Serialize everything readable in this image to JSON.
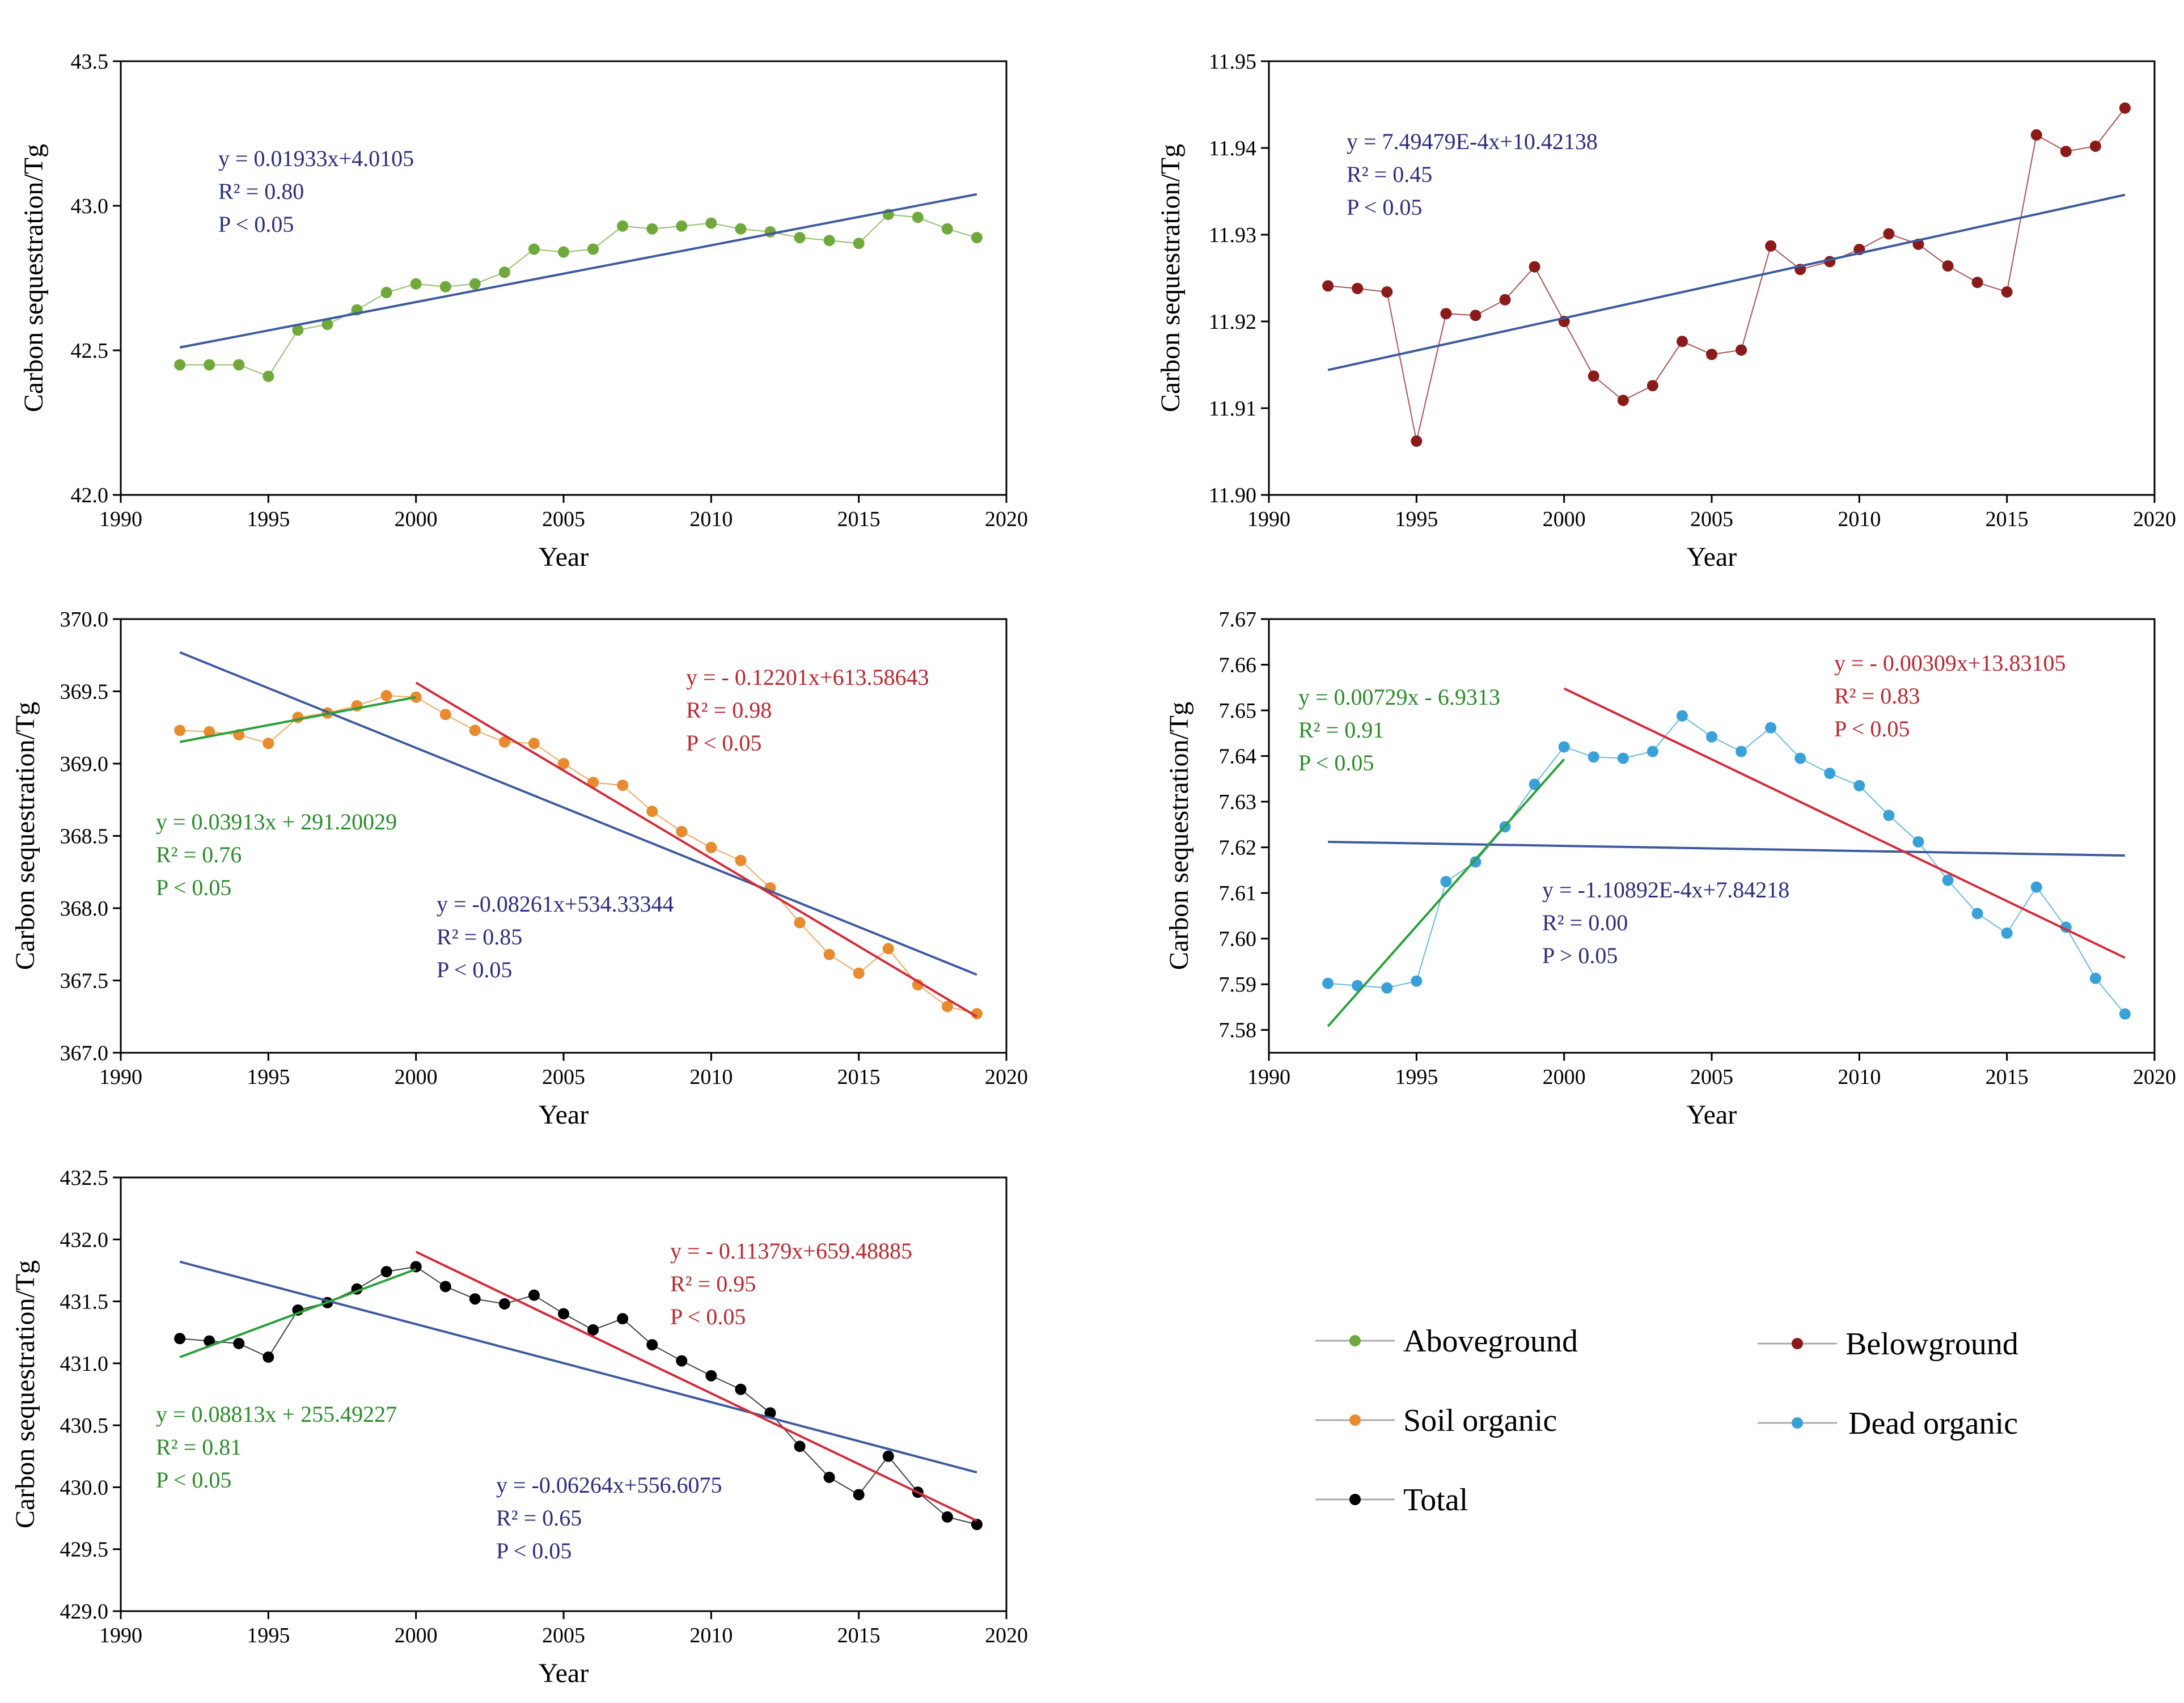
{
  "colors": {
    "aboveground": "#70a83c",
    "belowground": "#8b1a1a",
    "soil": "#e88a2e",
    "dead": "#3aa0d8",
    "total": "#000000",
    "fit_blue": "#3d5a9e",
    "fit_red": "#d42a3a",
    "fit_green": "#2aa03a",
    "ann_blue": "#2c2c7c",
    "ann_red": "#b8282e",
    "ann_green": "#2b8a2b"
  },
  "legend": {
    "aboveground": "Aboveground",
    "belowground": "Belowground",
    "soil": "Soil organic",
    "dead": "Dead organic",
    "total": "Total"
  },
  "chart_data": [
    {
      "id": "aboveground",
      "type": "line",
      "xlabel": "Year",
      "ylabel": "Carbon sequestration/Tg",
      "xlim": [
        1990,
        2020
      ],
      "ylim": [
        42.0,
        43.5
      ],
      "xticks": [
        "1990",
        "1995",
        "2000",
        "2005",
        "2010",
        "2015",
        "2020"
      ],
      "yticks": [
        "42.0",
        "42.5",
        "43.0",
        "43.5"
      ],
      "series": [
        {
          "name": "Aboveground",
          "color_key": "aboveground",
          "x": [
            1992,
            1993,
            1994,
            1995,
            1996,
            1997,
            1998,
            1999,
            2000,
            2001,
            2002,
            2003,
            2004,
            2005,
            2006,
            2007,
            2008,
            2009,
            2010,
            2011,
            2012,
            2013,
            2014,
            2015,
            2016,
            2017,
            2018,
            2019
          ],
          "y": [
            42.45,
            42.45,
            42.45,
            42.41,
            42.57,
            42.59,
            42.64,
            42.7,
            42.73,
            42.72,
            42.73,
            42.77,
            42.85,
            42.84,
            42.85,
            42.93,
            42.92,
            42.93,
            42.94,
            42.92,
            42.91,
            42.89,
            42.88,
            42.87,
            42.97,
            42.96,
            42.92,
            42.89
          ]
        }
      ],
      "fits": [
        {
          "color_key": "fit_blue",
          "x": [
            1992,
            2019
          ],
          "y": [
            42.51,
            43.04
          ]
        }
      ],
      "annotations": [
        {
          "color_key": "ann_blue",
          "lines": [
            "y = 0.01933x+4.0105",
            "R² = 0.80",
            "P < 0.05"
          ]
        }
      ]
    },
    {
      "id": "belowground",
      "type": "line",
      "xlabel": "Year",
      "ylabel": "Carbon sequestration/Tg",
      "xlim": [
        1990,
        2020
      ],
      "ylim": [
        11.9,
        11.95
      ],
      "xticks": [
        "1990",
        "1995",
        "2000",
        "2005",
        "2010",
        "2015",
        "2020"
      ],
      "yticks": [
        "11.90",
        "11.91",
        "11.92",
        "11.93",
        "11.94",
        "11.95"
      ],
      "series": [
        {
          "name": "Belowground",
          "color_key": "belowground",
          "x": [
            1992,
            1993,
            1994,
            1995,
            1996,
            1997,
            1998,
            1999,
            2000,
            2001,
            2002,
            2003,
            2004,
            2005,
            2006,
            2007,
            2008,
            2009,
            2010,
            2011,
            2012,
            2013,
            2014,
            2015,
            2016,
            2017,
            2018,
            2019
          ],
          "y": [
            11.9241,
            11.9238,
            11.9234,
            11.9062,
            11.9209,
            11.9207,
            11.9225,
            11.9263,
            11.92,
            11.9137,
            11.9109,
            11.9126,
            11.9177,
            11.9162,
            11.9167,
            11.9287,
            11.926,
            11.9269,
            11.9283,
            11.9301,
            11.9289,
            11.9264,
            11.9245,
            11.9234,
            11.9415,
            11.9396,
            11.9402,
            11.9446
          ]
        }
      ],
      "fits": [
        {
          "color_key": "fit_blue",
          "x": [
            1992,
            2019
          ],
          "y": [
            11.9144,
            11.9346
          ]
        }
      ],
      "annotations": [
        {
          "color_key": "ann_blue",
          "lines": [
            "y = 7.49479E-4x+10.42138",
            "R² = 0.45",
            "P < 0.05"
          ]
        }
      ]
    },
    {
      "id": "soil",
      "type": "line",
      "xlabel": "Year",
      "ylabel": "Carbon sequestration/Tg",
      "xlim": [
        1990,
        2020
      ],
      "ylim": [
        367.0,
        370.0
      ],
      "xticks": [
        "1990",
        "1995",
        "2000",
        "2005",
        "2010",
        "2015",
        "2020"
      ],
      "yticks": [
        "367.0",
        "367.5",
        "368.0",
        "368.5",
        "369.0",
        "369.5",
        "370.0"
      ],
      "series": [
        {
          "name": "Soil organic",
          "color_key": "soil",
          "x": [
            1992,
            1993,
            1994,
            1995,
            1996,
            1997,
            1998,
            1999,
            2000,
            2001,
            2002,
            2003,
            2004,
            2005,
            2006,
            2007,
            2008,
            2009,
            2010,
            2011,
            2012,
            2013,
            2014,
            2015,
            2016,
            2017,
            2018,
            2019
          ],
          "y": [
            369.23,
            369.22,
            369.2,
            369.14,
            369.32,
            369.35,
            369.4,
            369.47,
            369.46,
            369.34,
            369.23,
            369.15,
            369.14,
            369.0,
            368.87,
            368.85,
            368.67,
            368.53,
            368.42,
            368.33,
            368.14,
            367.9,
            367.68,
            367.55,
            367.72,
            367.47,
            367.32,
            367.27
          ]
        }
      ],
      "fits": [
        {
          "color_key": "fit_blue",
          "x": [
            1992,
            2019
          ],
          "y": [
            369.77,
            367.54
          ]
        },
        {
          "color_key": "fit_red",
          "x": [
            2000,
            2019
          ],
          "y": [
            369.56,
            367.25
          ]
        },
        {
          "color_key": "fit_green",
          "x": [
            1992,
            2000
          ],
          "y": [
            369.15,
            369.46
          ]
        }
      ],
      "annotations": [
        {
          "color_key": "ann_red",
          "lines": [
            "y = - 0.12201x+613.58643",
            "R² = 0.98",
            "P < 0.05"
          ]
        },
        {
          "color_key": "ann_green",
          "lines": [
            "y = 0.03913x + 291.20029",
            "R² = 0.76",
            "P < 0.05"
          ]
        },
        {
          "color_key": "ann_blue",
          "lines": [
            "y = -0.08261x+534.33344",
            "R² = 0.85",
            "P < 0.05"
          ]
        }
      ]
    },
    {
      "id": "dead",
      "type": "line",
      "xlabel": "Year",
      "ylabel": "Carbon sequestration/Tg",
      "xlim": [
        1990,
        2020
      ],
      "ylim": [
        7.575,
        7.67
      ],
      "xticks": [
        "1990",
        "1995",
        "2000",
        "2005",
        "2010",
        "2015",
        "2020"
      ],
      "yticks": [
        "7.58",
        "7.59",
        "7.60",
        "7.61",
        "7.62",
        "7.63",
        "7.64",
        "7.65",
        "7.66",
        "7.67"
      ],
      "series": [
        {
          "name": "Dead organic",
          "color_key": "dead",
          "x": [
            1992,
            1993,
            1994,
            1995,
            1996,
            1997,
            1998,
            1999,
            2000,
            2001,
            2002,
            2003,
            2004,
            2005,
            2006,
            2007,
            2008,
            2009,
            2010,
            2011,
            2012,
            2013,
            2014,
            2015,
            2016,
            2017,
            2018,
            2019
          ],
          "y": [
            7.5902,
            7.5897,
            7.5892,
            7.5907,
            7.6125,
            7.6168,
            7.6245,
            7.6338,
            7.642,
            7.6398,
            7.6395,
            7.641,
            7.6488,
            7.6442,
            7.641,
            7.6462,
            7.6395,
            7.6362,
            7.6335,
            7.627,
            7.6212,
            7.6128,
            7.6055,
            7.6012,
            7.6113,
            7.6025,
            7.5913,
            7.5835
          ]
        }
      ],
      "fits": [
        {
          "color_key": "fit_blue",
          "x": [
            1992,
            2019
          ],
          "y": [
            7.6212,
            7.6182
          ]
        },
        {
          "color_key": "fit_red",
          "x": [
            2000,
            2019
          ],
          "y": [
            7.6548,
            7.5958
          ]
        },
        {
          "color_key": "fit_green",
          "x": [
            1992,
            2000
          ],
          "y": [
            7.5808,
            7.6393
          ]
        }
      ],
      "annotations": [
        {
          "color_key": "ann_red",
          "lines": [
            "y = - 0.00309x+13.83105",
            "R² = 0.83",
            "P < 0.05"
          ]
        },
        {
          "color_key": "ann_green",
          "lines": [
            "y = 0.00729x - 6.9313",
            "R² = 0.91",
            "P < 0.05"
          ]
        },
        {
          "color_key": "ann_blue",
          "lines": [
            "y = -1.10892E-4x+7.84218",
            "R² = 0.00",
            "P > 0.05"
          ]
        }
      ]
    },
    {
      "id": "total",
      "type": "line",
      "xlabel": "Year",
      "ylabel": "Carbon sequestration/Tg",
      "xlim": [
        1990,
        2020
      ],
      "ylim": [
        429.0,
        432.5
      ],
      "xticks": [
        "1990",
        "1995",
        "2000",
        "2005",
        "2010",
        "2015",
        "2020"
      ],
      "yticks": [
        "429.0",
        "429.5",
        "430.0",
        "430.5",
        "431.0",
        "431.5",
        "432.0",
        "432.5"
      ],
      "series": [
        {
          "name": "Total",
          "color_key": "total",
          "x": [
            1992,
            1993,
            1994,
            1995,
            1996,
            1997,
            1998,
            1999,
            2000,
            2001,
            2002,
            2003,
            2004,
            2005,
            2006,
            2007,
            2008,
            2009,
            2010,
            2011,
            2012,
            2013,
            2014,
            2015,
            2016,
            2017,
            2018,
            2019
          ],
          "y": [
            431.2,
            431.18,
            431.16,
            431.05,
            431.43,
            431.49,
            431.6,
            431.74,
            431.78,
            431.62,
            431.52,
            431.48,
            431.55,
            431.4,
            431.27,
            431.36,
            431.15,
            431.02,
            430.9,
            430.79,
            430.6,
            430.33,
            430.08,
            429.94,
            430.25,
            429.96,
            429.76,
            429.7
          ]
        }
      ],
      "fits": [
        {
          "color_key": "fit_blue",
          "x": [
            1992,
            2019
          ],
          "y": [
            431.82,
            430.12
          ]
        },
        {
          "color_key": "fit_red",
          "x": [
            2000,
            2019
          ],
          "y": [
            431.9,
            429.73
          ]
        },
        {
          "color_key": "fit_green",
          "x": [
            1992,
            2000
          ],
          "y": [
            431.05,
            431.76
          ]
        }
      ],
      "annotations": [
        {
          "color_key": "ann_red",
          "lines": [
            "y = - 0.11379x+659.48885",
            "R² = 0.95",
            "P < 0.05"
          ]
        },
        {
          "color_key": "ann_green",
          "lines": [
            "y = 0.08813x + 255.49227",
            "R² = 0.81",
            "P < 0.05"
          ]
        },
        {
          "color_key": "ann_blue",
          "lines": [
            "y = -0.06264x+556.6075",
            "R² = 0.65",
            "P < 0.05"
          ]
        }
      ]
    }
  ]
}
